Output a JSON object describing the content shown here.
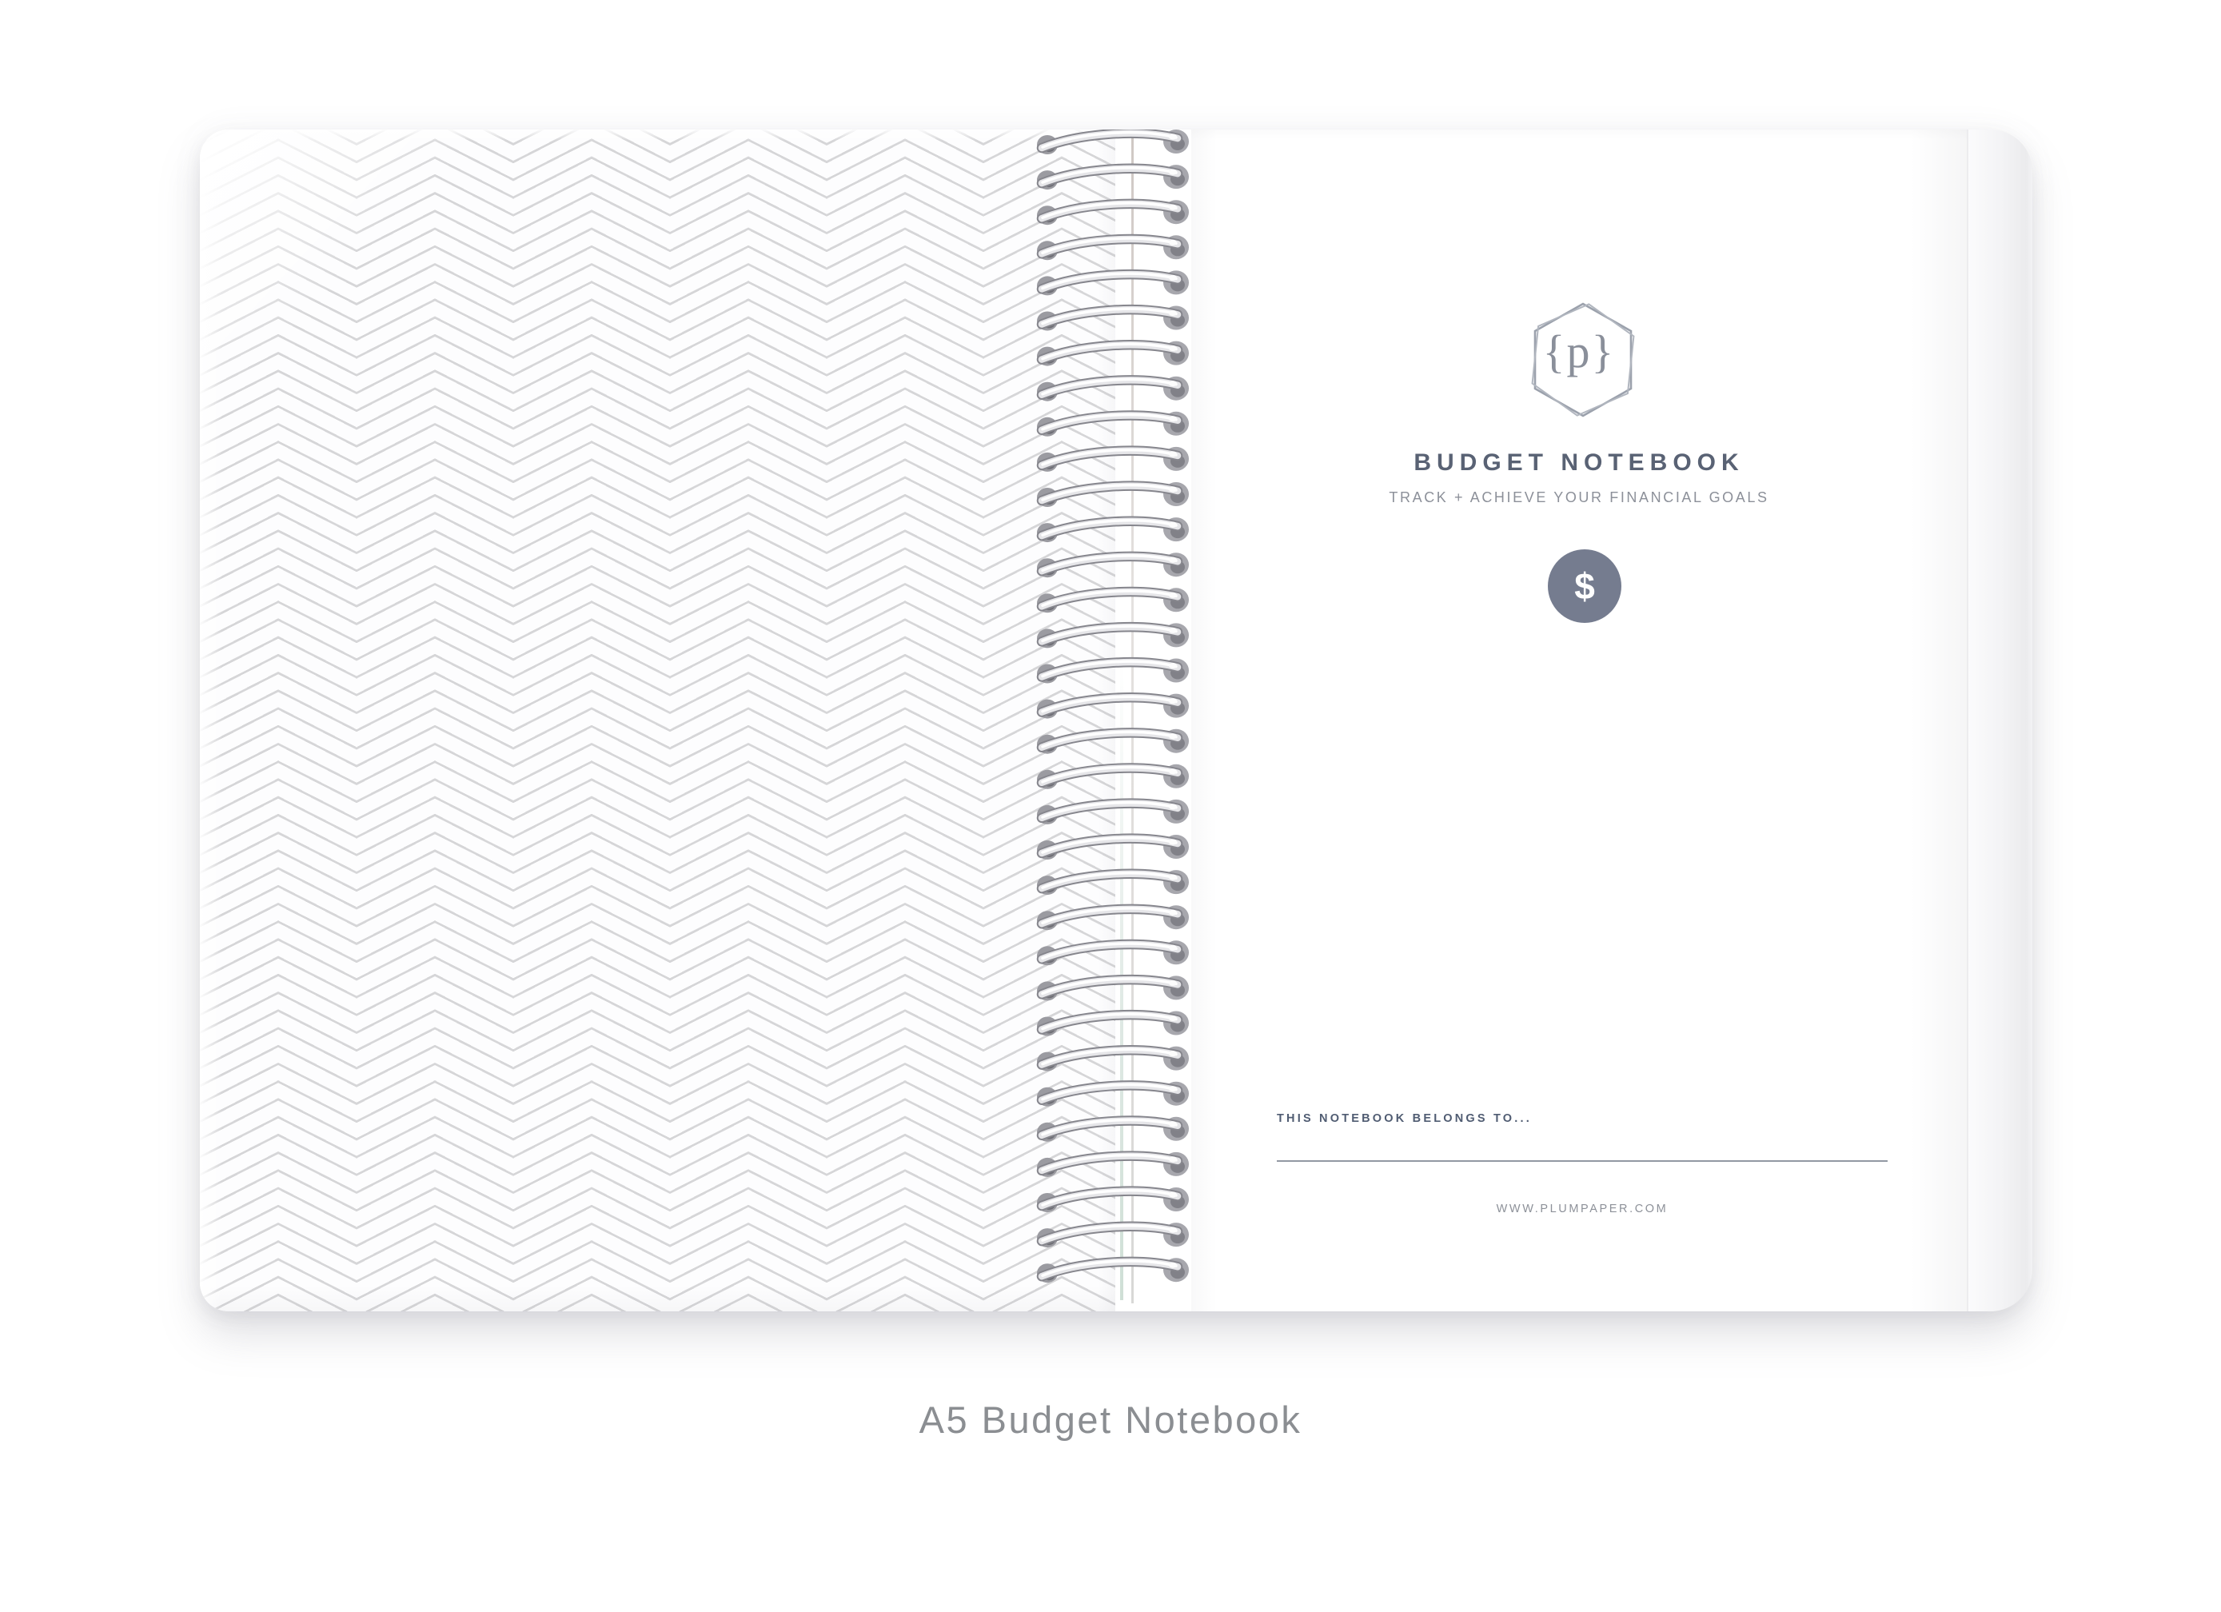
{
  "page": {
    "caption": "A5 Budget Notebook",
    "background_color": "#ffffff"
  },
  "notebook": {
    "cover": {
      "monogram": "{p}",
      "title": "BUDGET NOTEBOOK",
      "subtitle": "TRACK + ACHIEVE YOUR FINANCIAL GOALS",
      "badge_symbol": "$",
      "belongs_to_label": "THIS NOTEBOOK BELONGS TO...",
      "website": "WWW.PLUMPAPER.COM"
    },
    "colors": {
      "title_text": "#596274",
      "subtitle_text": "#8c9099",
      "belongs_text": "#505c72",
      "url_text": "#8d9199",
      "caption_text": "#8b8e92",
      "badge_fill": "#757c8f",
      "hexagon_stroke": "#9ba1ac",
      "pattern_line": "#d6d6d8",
      "coil_wire_dark": "#86868d",
      "coil_wire_light": "#e6e6e9"
    },
    "binding": {
      "loop_count": 33
    },
    "pattern": {
      "column_count": 12
    }
  }
}
